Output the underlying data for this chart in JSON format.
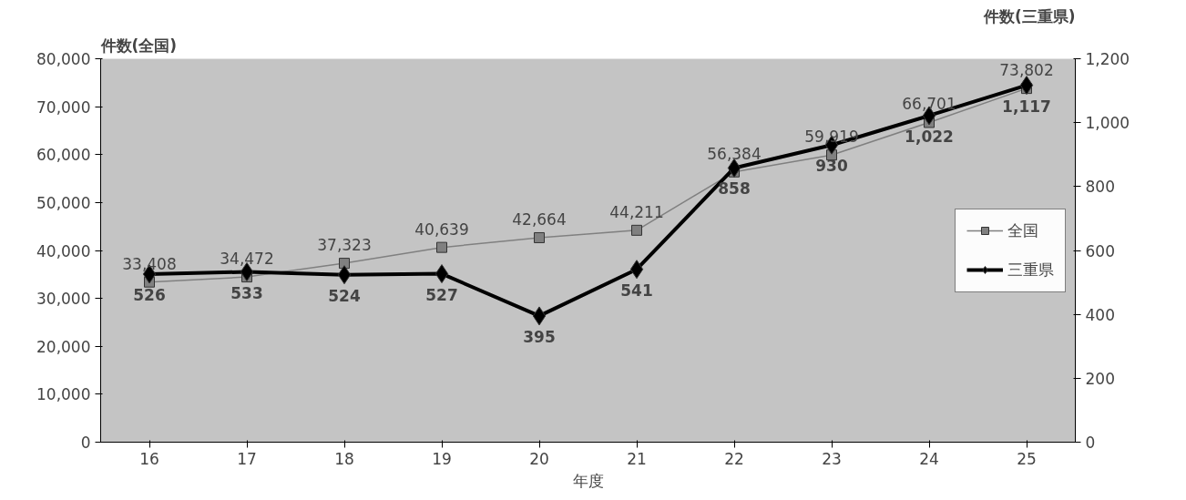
{
  "chart_data": {
    "type": "line",
    "xlabel": "年度",
    "ylabel": "件数(全国)",
    "y2label": "件数(三重県)",
    "categories": [
      "16",
      "17",
      "18",
      "19",
      "20",
      "21",
      "22",
      "23",
      "24",
      "25"
    ],
    "ylim": [
      0,
      80000
    ],
    "yticks": [
      0,
      {
        "value": 10000,
        "label": "10,000"
      },
      {
        "value": 20000,
        "label": "20,000"
      },
      {
        "value": 30000,
        "label": "30,000"
      },
      {
        "value": 40000,
        "label": "40,000"
      },
      {
        "value": 50000,
        "label": "50,000"
      },
      {
        "value": 60000,
        "label": "60,000"
      },
      {
        "value": 70000,
        "label": "70,000"
      },
      {
        "value": 80000,
        "label": "80,000"
      }
    ],
    "y2lim": [
      0,
      1200
    ],
    "y2ticks": [
      0,
      200,
      400,
      600,
      800,
      {
        "value": 1000,
        "label": "1,000"
      },
      {
        "value": 1200,
        "label": "1,200"
      }
    ],
    "grid": false,
    "legend": "right",
    "series": [
      {
        "name": "全国",
        "color": "#808080",
        "marker": "square",
        "values": [
          33408,
          34472,
          37323,
          40639,
          42664,
          44211,
          56384,
          59919,
          66701,
          73802
        ],
        "value_labels": [
          "33,408",
          "34,472",
          "37,323",
          "40,639",
          "42,664",
          "44,211",
          "56,384",
          "59,919",
          "66,701",
          "73,802"
        ]
      },
      {
        "name": "三重県",
        "color": "#000000",
        "marker": "diamond",
        "axis": "y2",
        "values": [
          526,
          533,
          524,
          527,
          395,
          541,
          858,
          930,
          1022,
          1117
        ],
        "value_labels": [
          "526",
          "533",
          "524",
          "527",
          "395",
          "541",
          "858",
          "930",
          "1,022",
          "1,117"
        ]
      }
    ]
  }
}
